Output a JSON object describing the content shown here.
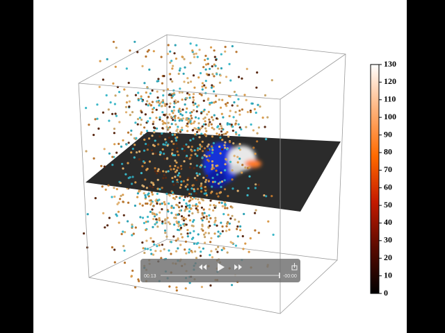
{
  "colorbar": {
    "ticks": [
      0,
      10,
      20,
      30,
      40,
      50,
      60,
      70,
      80,
      90,
      100,
      110,
      120,
      130
    ]
  },
  "player": {
    "elapsed": "00:13",
    "remaining": "-00:00"
  }
}
